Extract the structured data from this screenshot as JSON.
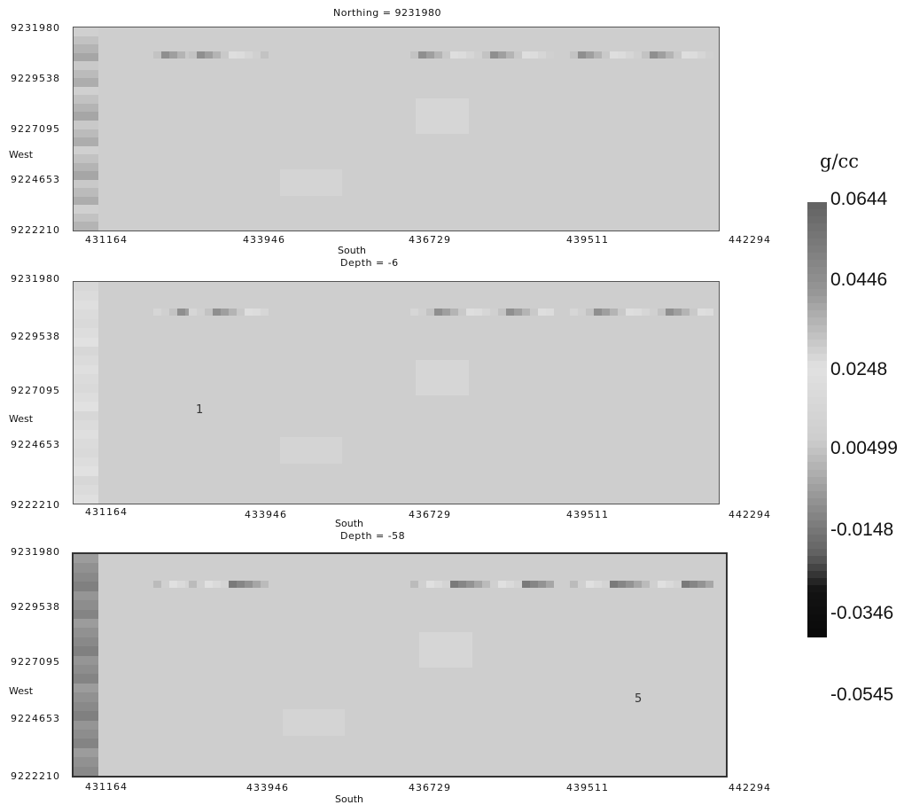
{
  "colorbar": {
    "unit": "g/cc",
    "ticks": [
      "0.0644",
      "0.0446",
      "0.0248",
      "0.00499",
      "-0.0148",
      "-0.0346",
      "-0.0545"
    ],
    "min": -0.0545,
    "max": 0.0644
  },
  "chart_data": [
    {
      "type": "heatmap",
      "title": "Northing =  9231980",
      "xlabel": "South",
      "ylabel": "West",
      "xticks": [
        "431164",
        "433946",
        "436729",
        "439511",
        "442294"
      ],
      "yticks": [
        "9231980",
        "9229538",
        "9227095",
        "9224653",
        "9222210"
      ],
      "annotations": [],
      "values_gcc": {
        "background": 0.0,
        "west_strip": 0.03,
        "shallow_anomaly_band": 0.02
      }
    },
    {
      "type": "heatmap",
      "title": "Depth =  -6",
      "xlabel": "South",
      "ylabel": "West",
      "xticks": [
        "431164",
        "433946",
        "436729",
        "439511",
        "442294"
      ],
      "yticks": [
        "9231980",
        "9229538",
        "9227095",
        "9224653",
        "9222210"
      ],
      "annotations": [
        "1"
      ],
      "values_gcc": {
        "background": 0.0,
        "west_strip": 0.015,
        "shallow_anomaly_band": 0.02
      }
    },
    {
      "type": "heatmap",
      "title": "Depth =  -58",
      "xlabel": "South",
      "ylabel": "West",
      "xticks": [
        "431164",
        "433946",
        "436729",
        "439511",
        "442294"
      ],
      "yticks": [
        "9231980",
        "9229538",
        "9227095",
        "9224653",
        "9222210"
      ],
      "annotations": [
        "5"
      ],
      "values_gcc": {
        "background": 0.0,
        "west_strip": 0.045,
        "shallow_anomaly_band": 0.03
      }
    }
  ]
}
